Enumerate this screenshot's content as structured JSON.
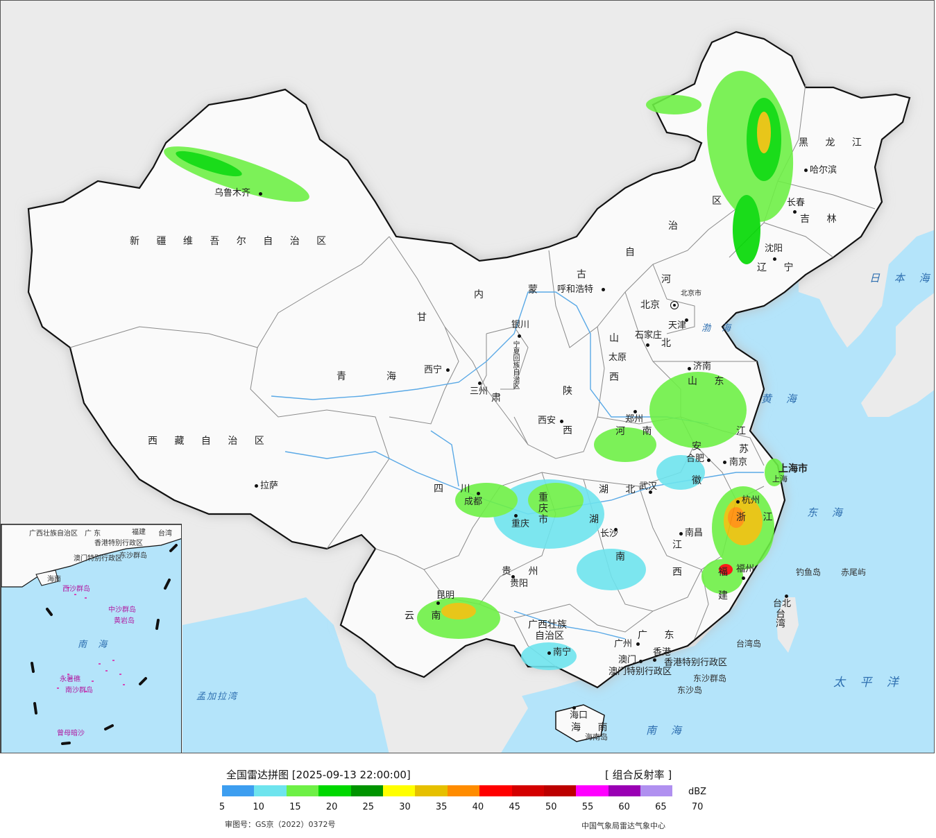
{
  "map": {
    "colors": {
      "land": "#f2f2f2",
      "china_land": "#fafafa",
      "sea": "#b4e4fa",
      "border": "#111111",
      "province_border": "#888888",
      "river": "#5aa9e6",
      "glow": "#c8c8c8"
    },
    "regions": [
      {
        "id": "xinjiang",
        "label": "新 疆 维 吾 尔 自 治 区"
      },
      {
        "id": "xizang",
        "label": "西 藏 自 治 区"
      },
      {
        "id": "qinghai_a",
        "label": "青"
      },
      {
        "id": "qinghai_b",
        "label": "海"
      },
      {
        "id": "gansu",
        "label": "甘"
      },
      {
        "id": "gansu2",
        "label": "肃"
      },
      {
        "id": "nmg_1",
        "label": "内"
      },
      {
        "id": "nmg_2",
        "label": "蒙"
      },
      {
        "id": "nmg_3",
        "label": "古"
      },
      {
        "id": "nmg_4",
        "label": "自"
      },
      {
        "id": "nmg_5",
        "label": "治"
      },
      {
        "id": "nmg_6",
        "label": "区"
      },
      {
        "id": "hlj",
        "label": "黑 龙 江"
      },
      {
        "id": "jilin",
        "label": "吉 林"
      },
      {
        "id": "liaoning",
        "label": "辽 宁"
      },
      {
        "id": "hebei_a",
        "label": "河"
      },
      {
        "id": "hebei_b",
        "label": "北"
      },
      {
        "id": "shanxi_a",
        "label": "山"
      },
      {
        "id": "shanxi_b",
        "label": "西"
      },
      {
        "id": "shaanxi_a",
        "label": "陕"
      },
      {
        "id": "shaanxi_b",
        "label": "西"
      },
      {
        "id": "shandong",
        "label": "山 东"
      },
      {
        "id": "henan",
        "label": "河 南"
      },
      {
        "id": "jiangsu_a",
        "label": "江"
      },
      {
        "id": "jiangsu_b",
        "label": "苏"
      },
      {
        "id": "anhui_a",
        "label": "安"
      },
      {
        "id": "anhui_b",
        "label": "徽"
      },
      {
        "id": "hubei",
        "label": "湖 北"
      },
      {
        "id": "sichuan",
        "label": "四 川"
      },
      {
        "id": "chongqing",
        "label": "重庆市"
      },
      {
        "id": "hunan_a",
        "label": "湖"
      },
      {
        "id": "hunan_b",
        "label": "南"
      },
      {
        "id": "jiangxi_a",
        "label": "江"
      },
      {
        "id": "jiangxi_b",
        "label": "西"
      },
      {
        "id": "zhejiang",
        "label": "浙 江"
      },
      {
        "id": "fujian_a",
        "label": "福"
      },
      {
        "id": "fujian_b",
        "label": "建"
      },
      {
        "id": "guizhou",
        "label": "贵 州"
      },
      {
        "id": "yunnan",
        "label": "云 南"
      },
      {
        "id": "guangxi_a",
        "label": "广西壮族"
      },
      {
        "id": "guangxi_b",
        "label": "自治区"
      },
      {
        "id": "guangdong",
        "label": "广 东"
      },
      {
        "id": "hainan",
        "label": "海 南"
      },
      {
        "id": "taiwan",
        "label": "台湾"
      },
      {
        "id": "shanghai",
        "label": "上海市"
      },
      {
        "id": "ningxia",
        "label": "宁夏回族自治区"
      },
      {
        "id": "hk",
        "label": "香港特别行政区"
      },
      {
        "id": "macau",
        "label": "澳门特别行政区"
      }
    ],
    "cities": [
      {
        "id": "urumqi",
        "label": "乌鲁木齐"
      },
      {
        "id": "lhasa",
        "label": "拉萨"
      },
      {
        "id": "xining",
        "label": "西宁"
      },
      {
        "id": "lanzhou",
        "label": "三州"
      },
      {
        "id": "yinchuan",
        "label": "银川"
      },
      {
        "id": "hohhot",
        "label": "呼和浩特"
      },
      {
        "id": "harbin",
        "label": "哈尔滨"
      },
      {
        "id": "changchun",
        "label": "长春"
      },
      {
        "id": "shenyang",
        "label": "沈阳"
      },
      {
        "id": "beijing",
        "label": "北京"
      },
      {
        "id": "beijing_city",
        "label": "北京市"
      },
      {
        "id": "tianjin",
        "label": "天津"
      },
      {
        "id": "shijiazhuang",
        "label": "石家庄"
      },
      {
        "id": "taiyuan",
        "label": "太原"
      },
      {
        "id": "jinan",
        "label": "济南"
      },
      {
        "id": "zhengzhou",
        "label": "郑州"
      },
      {
        "id": "xian",
        "label": "西安"
      },
      {
        "id": "hefei",
        "label": "合肥"
      },
      {
        "id": "nanjing",
        "label": "南京"
      },
      {
        "id": "shanghai_c",
        "label": "上海"
      },
      {
        "id": "hangzhou",
        "label": "杭州"
      },
      {
        "id": "wuhan",
        "label": "武汉"
      },
      {
        "id": "chengdu",
        "label": "成都"
      },
      {
        "id": "chongqing_c",
        "label": "重庆"
      },
      {
        "id": "changsha",
        "label": "长沙"
      },
      {
        "id": "nanchang",
        "label": "南昌"
      },
      {
        "id": "fuzhou",
        "label": "福州"
      },
      {
        "id": "guiyang",
        "label": "贵阳"
      },
      {
        "id": "kunming",
        "label": "昆明"
      },
      {
        "id": "nanning",
        "label": "南宁"
      },
      {
        "id": "guangzhou",
        "label": "广州"
      },
      {
        "id": "hongkong",
        "label": "香港"
      },
      {
        "id": "macao",
        "label": "澳门"
      },
      {
        "id": "haikou",
        "label": "海口"
      },
      {
        "id": "taipei",
        "label": "台北"
      }
    ],
    "seas": [
      {
        "id": "japan_sea",
        "label": "日 本 海"
      },
      {
        "id": "bohai",
        "label": "渤 海"
      },
      {
        "id": "yellow_sea",
        "label": "黄 海"
      },
      {
        "id": "east_sea",
        "label": "东 海"
      },
      {
        "id": "pacific",
        "label": "太 平 洋"
      },
      {
        "id": "south_sea",
        "label": "南 海"
      },
      {
        "id": "bengal",
        "label": "孟加拉湾"
      }
    ],
    "islands": [
      {
        "id": "diaoyu",
        "label": "钓鱼岛"
      },
      {
        "id": "chiwei",
        "label": "赤尾屿"
      },
      {
        "id": "dongsha",
        "label": "东沙群岛"
      },
      {
        "id": "dongsha_dao",
        "label": "东沙岛"
      },
      {
        "id": "taiwan_dao",
        "label": "台湾岛"
      },
      {
        "id": "hainan_dao",
        "label": "海南岛"
      }
    ]
  },
  "inset": {
    "labels": [
      {
        "id": "i1",
        "label": "广西壮族自治区"
      },
      {
        "id": "i2",
        "label": "广 东"
      },
      {
        "id": "i3",
        "label": "福建"
      },
      {
        "id": "i4",
        "label": "台湾"
      },
      {
        "id": "i5",
        "label": "香港特别行政区"
      },
      {
        "id": "i6",
        "label": "澳门特别行政区"
      },
      {
        "id": "i7",
        "label": "东沙群岛"
      },
      {
        "id": "i8",
        "label": "海南"
      },
      {
        "id": "i9",
        "label": "西沙群岛"
      },
      {
        "id": "i10",
        "label": "中沙群岛"
      },
      {
        "id": "i11",
        "label": "黄岩岛"
      },
      {
        "id": "i12",
        "label": "永暑礁"
      },
      {
        "id": "i13",
        "label": "南沙群岛"
      },
      {
        "id": "i14",
        "label": "曾母暗沙"
      },
      {
        "id": "i15",
        "label": "南 海"
      }
    ]
  },
  "legend": {
    "title": "全国雷达拼图 [2025-09-13 22:00:00]",
    "product": "[ 组合反射率 ]",
    "unit": "dBZ",
    "colors": [
      "#3d9ef0",
      "#6ee4ee",
      "#6ef046",
      "#00d800",
      "#009400",
      "#ffff00",
      "#e6c000",
      "#ff8c00",
      "#ff0000",
      "#d40000",
      "#bc0000",
      "#ff00ff",
      "#9a00b4",
      "#b090f0"
    ],
    "ticks": [
      "5",
      "10",
      "15",
      "20",
      "25",
      "30",
      "35",
      "40",
      "45",
      "50",
      "55",
      "60",
      "65",
      "70"
    ],
    "approval": "审图号：GS京（2022）0372号",
    "source": "中国气象局雷达气象中心"
  }
}
